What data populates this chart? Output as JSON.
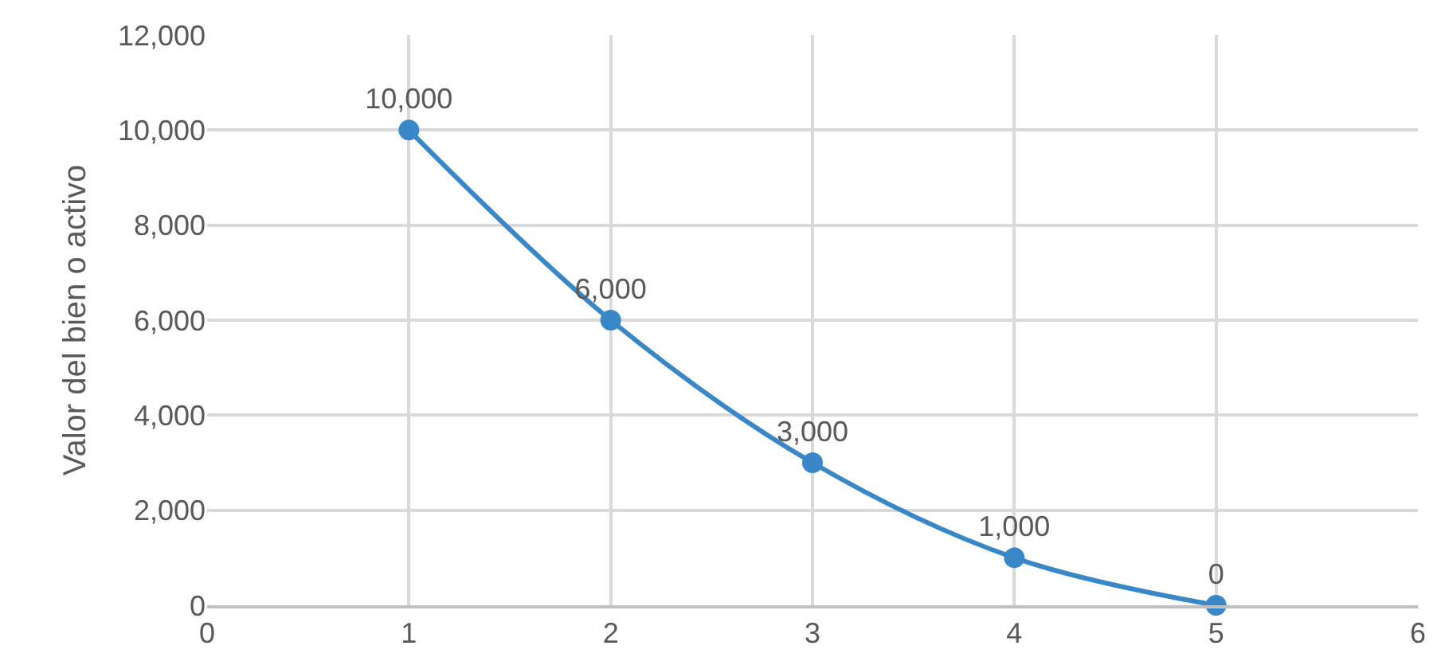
{
  "chart_data": {
    "type": "scatter",
    "ylabel": "Valor del bien o activo",
    "x": [
      1,
      2,
      3,
      4,
      5
    ],
    "series": [
      {
        "type": "line",
        "color": "#3a87c8",
        "values": [
          10000,
          6000,
          3000,
          1000,
          0
        ],
        "value_labels": [
          "10,000",
          "6,000",
          "3,000",
          "1,000",
          "0"
        ]
      }
    ],
    "xlim": [
      0,
      6
    ],
    "xticks": [
      0,
      1,
      2,
      3,
      4,
      5,
      6
    ],
    "ylim": [
      0,
      12000
    ],
    "yticks": [
      0,
      {
        "value": 2000,
        "label": "2,000"
      },
      {
        "value": 4000,
        "label": "4,000"
      },
      {
        "value": 6000,
        "label": "6,000"
      },
      {
        "value": 8000,
        "label": "8,000"
      },
      {
        "value": 10000,
        "label": "10,000"
      },
      {
        "value": 12000,
        "label": "12,000"
      }
    ],
    "grid": true,
    "marker": "circle",
    "line_style": "solid"
  }
}
